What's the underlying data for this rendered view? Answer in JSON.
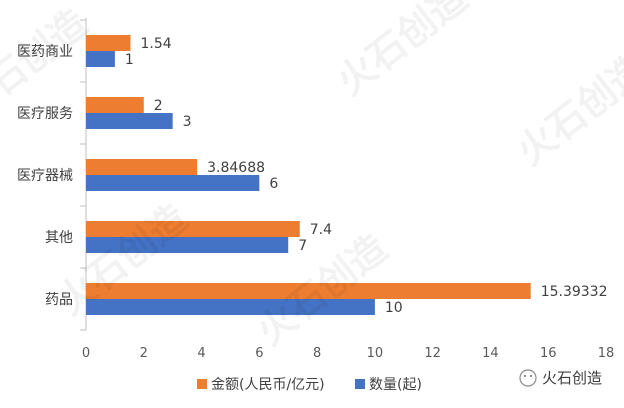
{
  "chart_data": {
    "type": "bar",
    "orientation": "horizontal",
    "categories": [
      "医药商业",
      "医疗服务",
      "医疗器械",
      "其他",
      "药品"
    ],
    "series": [
      {
        "name": "金额(人民币/亿元)",
        "color": "#ED7D31",
        "values": [
          1.54,
          2,
          3.84688,
          7.4,
          15.39332
        ],
        "labels": [
          "1.54",
          "2",
          "3.84688",
          "7.4",
          "15.39332"
        ]
      },
      {
        "name": "数量(起)",
        "color": "#4472C4",
        "values": [
          1,
          3,
          6,
          7,
          10
        ],
        "labels": [
          "1",
          "3",
          "6",
          "7",
          "10"
        ]
      }
    ],
    "xlim": [
      0,
      18
    ],
    "xticks": [
      0,
      2,
      4,
      6,
      8,
      10,
      12,
      14,
      16,
      18
    ],
    "grid": false,
    "legend_position": "bottom"
  },
  "watermark": {
    "text": "火石创造"
  }
}
